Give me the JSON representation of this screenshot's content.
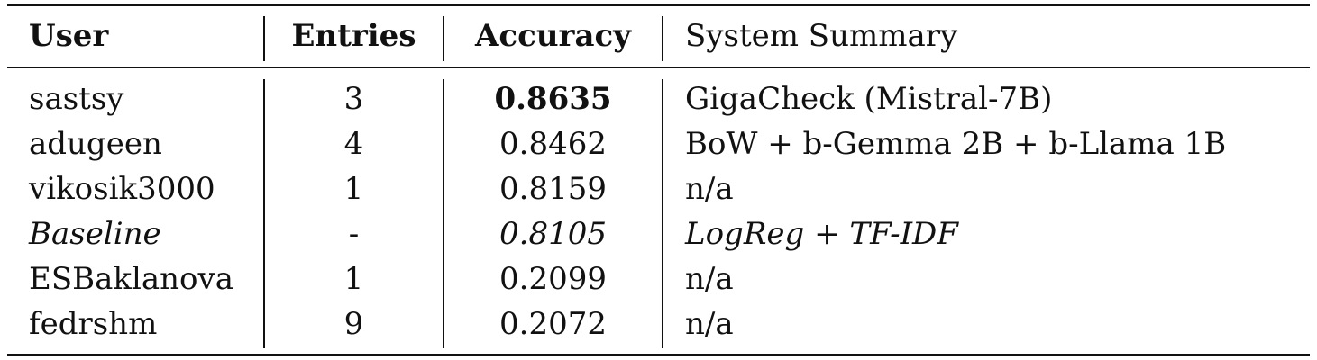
{
  "table": {
    "headers": {
      "user": "User",
      "entries": "Entries",
      "accuracy": "Accuracy",
      "system": "System Summary"
    },
    "rows": [
      {
        "user": "sastsy",
        "entries": "3",
        "accuracy": "0.8635",
        "system": "GigaCheck (Mistral-7B)"
      },
      {
        "user": "adugeen",
        "entries": "4",
        "accuracy": "0.8462",
        "system": "BoW + b-Gemma 2B + b-Llama 1B"
      },
      {
        "user": "vikosik3000",
        "entries": "1",
        "accuracy": "0.8159",
        "system": "n/a"
      },
      {
        "user": "Baseline",
        "entries": "-",
        "accuracy": "0.8105",
        "system": "LogReg + TF-IDF"
      },
      {
        "user": "ESBaklanova",
        "entries": "1",
        "accuracy": "0.2099",
        "system": "n/a"
      },
      {
        "user": "fedrshm",
        "entries": "9",
        "accuracy": "0.2072",
        "system": "n/a"
      }
    ]
  }
}
